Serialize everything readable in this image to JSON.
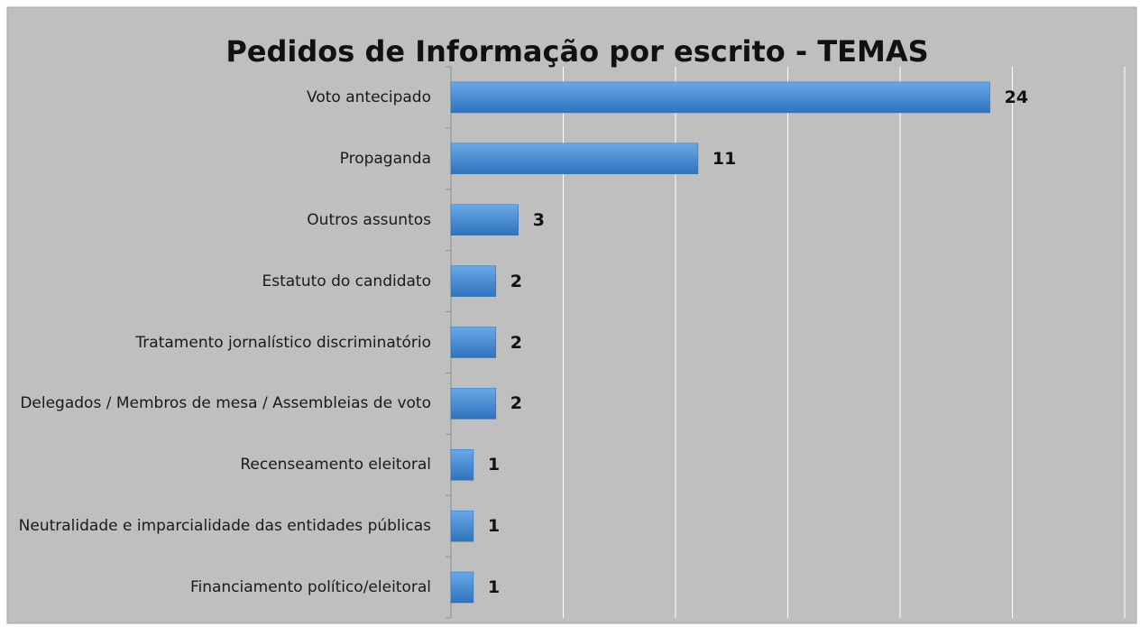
{
  "chart_data": {
    "type": "bar",
    "orientation": "horizontal",
    "title": "Pedidos de Informação por escrito - TEMAS",
    "categories": [
      "Voto antecipado",
      "Propaganda",
      "Outros assuntos",
      "Estatuto do candidato",
      "Tratamento jornalístico discriminatório",
      "Delegados / Membros de mesa / Assembleias de voto",
      "Recenseamento eleitoral",
      "Neutralidade e imparcialidade das entidades públicas",
      "Financiamento político/eleitoral"
    ],
    "values": [
      24,
      11,
      3,
      2,
      2,
      2,
      1,
      1,
      1
    ],
    "color": "#3a84d0",
    "xlim": [
      0,
      30
    ],
    "xticks": [
      0,
      5,
      10,
      15,
      20,
      25,
      30
    ],
    "grid": true
  }
}
